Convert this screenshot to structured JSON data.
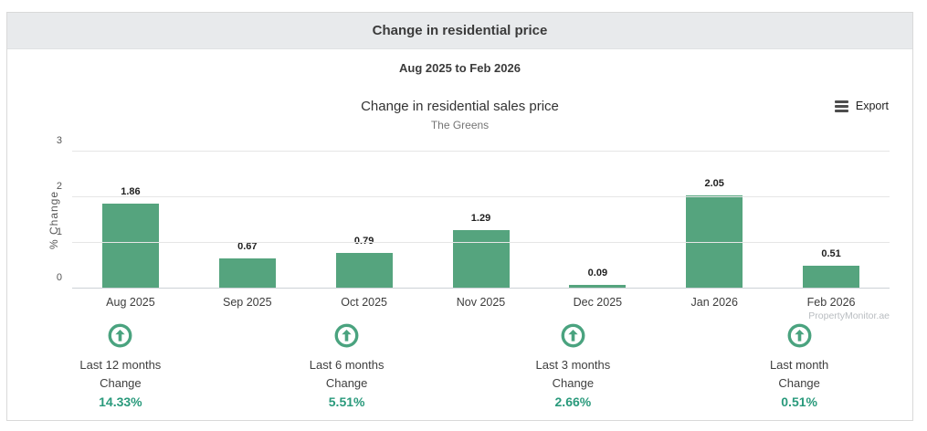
{
  "header": {
    "title": "Change in residential price"
  },
  "range_subtitle": "Aug 2025 to Feb 2026",
  "chart": {
    "title": "Change in residential sales price",
    "subtitle": "The Greens",
    "export_label": "Export",
    "export_icon": "hamburger-menu-icon",
    "watermark": "PropertyMonitor.ae"
  },
  "chart_data": {
    "type": "bar",
    "title": "Change in residential sales price",
    "subtitle": "The Greens",
    "categories": [
      "Aug 2025",
      "Sep 2025",
      "Oct 2025",
      "Nov 2025",
      "Dec 2025",
      "Jan 2026",
      "Feb 2026"
    ],
    "values": [
      1.86,
      0.67,
      0.79,
      1.29,
      0.09,
      2.05,
      0.51
    ],
    "xlabel": "",
    "ylabel": "% Change",
    "ylim": [
      0,
      3
    ],
    "yticks": [
      0,
      1,
      2,
      3
    ],
    "grid": true,
    "legend": false,
    "bar_color": "#55a47e"
  },
  "colors": {
    "bar_green": "#55a47e",
    "accent_green": "#2a9a7c",
    "icon_green": "#4aa37f",
    "header_bg": "#e8eaec"
  },
  "stats": {
    "items": [
      {
        "icon": "arrow-up-circle-icon",
        "label": "Last 12 months",
        "sublabel": "Change",
        "value": "14.33%"
      },
      {
        "icon": "arrow-up-circle-icon",
        "label": "Last 6 months",
        "sublabel": "Change",
        "value": "5.51%"
      },
      {
        "icon": "arrow-up-circle-icon",
        "label": "Last 3 months",
        "sublabel": "Change",
        "value": "2.66%"
      },
      {
        "icon": "arrow-up-circle-icon",
        "label": "Last month",
        "sublabel": "Change",
        "value": "0.51%"
      }
    ]
  }
}
